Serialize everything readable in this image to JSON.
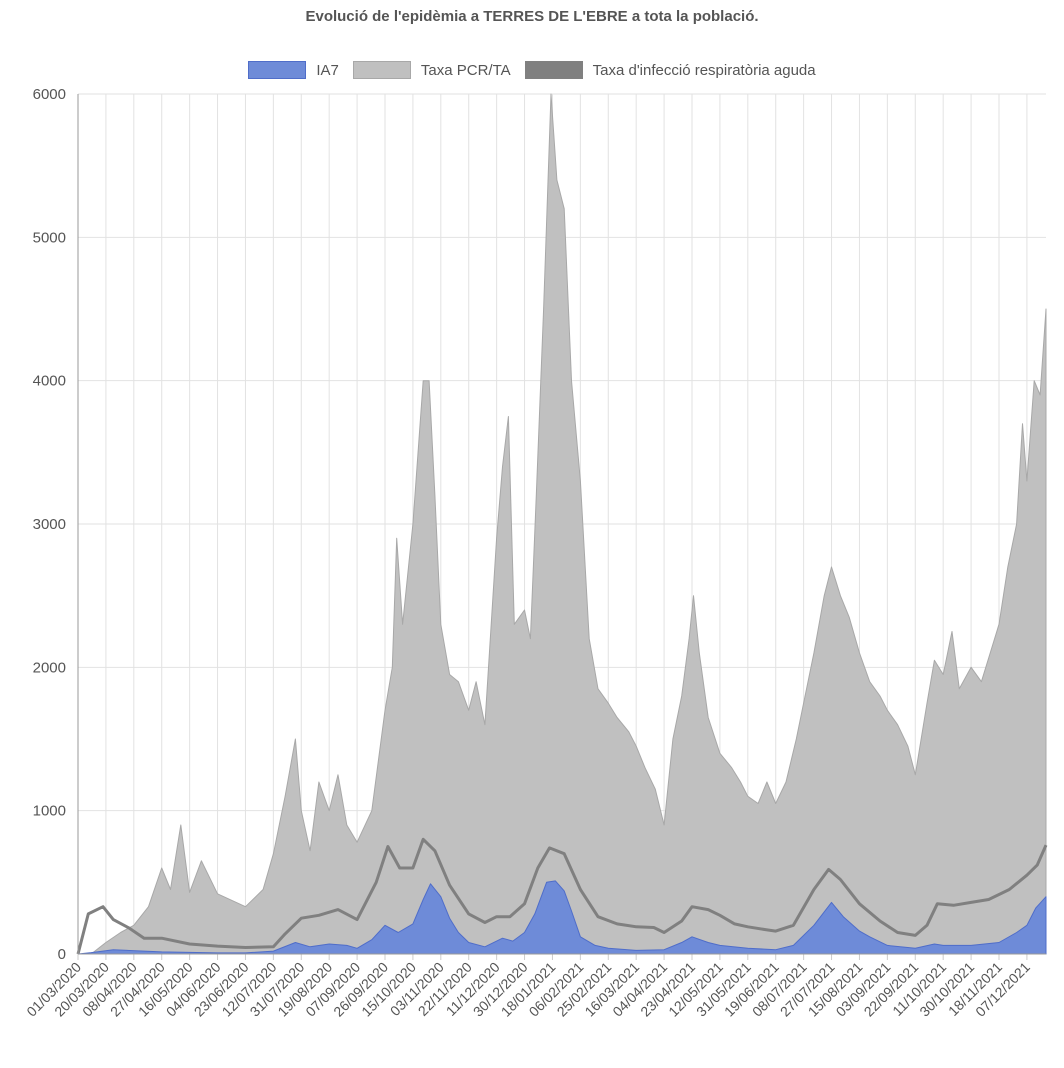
{
  "chart_data": {
    "type": "area",
    "title": "Evolució de l'epidèmia a TERRES DE L'EBRE a tota la població.",
    "xlabel": "",
    "ylabel": "",
    "ylim": [
      0,
      6000
    ],
    "yticks": [
      0,
      1000,
      2000,
      3000,
      4000,
      5000,
      6000
    ],
    "grid": true,
    "legend_position": "top-center",
    "x_start": "01/03/2020",
    "x_end": "20/12/2021",
    "x_tick_labels": [
      "01/03/2020",
      "20/03/2020",
      "08/04/2020",
      "27/04/2020",
      "16/05/2020",
      "04/06/2020",
      "23/06/2020",
      "12/07/2020",
      "31/07/2020",
      "19/08/2020",
      "07/09/2020",
      "26/09/2020",
      "15/10/2020",
      "03/11/2020",
      "22/11/2020",
      "11/12/2020",
      "30/12/2020",
      "18/01/2021",
      "06/02/2021",
      "25/02/2021",
      "16/03/2021",
      "04/04/2021",
      "23/04/2021",
      "12/05/2021",
      "31/05/2021",
      "19/06/2021",
      "08/07/2021",
      "27/07/2021",
      "15/08/2021",
      "03/09/2021",
      "22/09/2021",
      "11/10/2021",
      "30/10/2021",
      "18/11/2021",
      "07/12/2021"
    ],
    "series": [
      {
        "name": "Taxa PCR/TA",
        "color": "#c0c0c0",
        "border": "#a8a8a8",
        "points": [
          [
            "01/03/2020",
            0
          ],
          [
            "10/03/2020",
            0
          ],
          [
            "20/03/2020",
            80
          ],
          [
            "30/03/2020",
            150
          ],
          [
            "08/04/2020",
            200
          ],
          [
            "18/04/2020",
            330
          ],
          [
            "27/04/2020",
            600
          ],
          [
            "03/05/2020",
            450
          ],
          [
            "10/05/2020",
            900
          ],
          [
            "16/05/2020",
            430
          ],
          [
            "24/05/2020",
            650
          ],
          [
            "04/06/2020",
            420
          ],
          [
            "23/06/2020",
            330
          ],
          [
            "05/07/2020",
            450
          ],
          [
            "12/07/2020",
            700
          ],
          [
            "20/07/2020",
            1100
          ],
          [
            "27/07/2020",
            1500
          ],
          [
            "31/07/2020",
            1000
          ],
          [
            "06/08/2020",
            720
          ],
          [
            "12/08/2020",
            1200
          ],
          [
            "19/08/2020",
            1000
          ],
          [
            "25/08/2020",
            1250
          ],
          [
            "31/08/2020",
            900
          ],
          [
            "07/09/2020",
            780
          ],
          [
            "17/09/2020",
            1000
          ],
          [
            "26/09/2020",
            1700
          ],
          [
            "01/10/2020",
            2000
          ],
          [
            "04/10/2020",
            2900
          ],
          [
            "08/10/2020",
            2300
          ],
          [
            "15/10/2020",
            3000
          ],
          [
            "22/10/2020",
            4000
          ],
          [
            "26/10/2020",
            4000
          ],
          [
            "30/10/2020",
            3200
          ],
          [
            "03/11/2020",
            2300
          ],
          [
            "09/11/2020",
            1950
          ],
          [
            "15/11/2020",
            1900
          ],
          [
            "22/11/2020",
            1700
          ],
          [
            "27/11/2020",
            1900
          ],
          [
            "03/12/2020",
            1600
          ],
          [
            "11/12/2020",
            2900
          ],
          [
            "15/12/2020",
            3400
          ],
          [
            "19/12/2020",
            3750
          ],
          [
            "23/12/2020",
            2300
          ],
          [
            "30/12/2020",
            2400
          ],
          [
            "03/01/2021",
            2200
          ],
          [
            "07/01/2021",
            3200
          ],
          [
            "12/01/2021",
            4500
          ],
          [
            "17/01/2021",
            6000
          ],
          [
            "21/01/2021",
            5400
          ],
          [
            "26/01/2021",
            5200
          ],
          [
            "31/01/2021",
            4000
          ],
          [
            "06/02/2021",
            3300
          ],
          [
            "12/02/2021",
            2200
          ],
          [
            "18/02/2021",
            1850
          ],
          [
            "25/02/2021",
            1750
          ],
          [
            "03/03/2021",
            1650
          ],
          [
            "11/03/2021",
            1550
          ],
          [
            "16/03/2021",
            1450
          ],
          [
            "22/03/2021",
            1300
          ],
          [
            "29/03/2021",
            1150
          ],
          [
            "04/04/2021",
            900
          ],
          [
            "10/04/2021",
            1500
          ],
          [
            "16/04/2021",
            1800
          ],
          [
            "21/04/2021",
            2200
          ],
          [
            "24/04/2021",
            2500
          ],
          [
            "28/04/2021",
            2100
          ],
          [
            "04/05/2021",
            1650
          ],
          [
            "12/05/2021",
            1400
          ],
          [
            "20/05/2021",
            1300
          ],
          [
            "26/05/2021",
            1200
          ],
          [
            "31/05/2021",
            1100
          ],
          [
            "07/06/2021",
            1050
          ],
          [
            "13/06/2021",
            1200
          ],
          [
            "19/06/2021",
            1050
          ],
          [
            "26/06/2021",
            1200
          ],
          [
            "03/07/2021",
            1500
          ],
          [
            "08/07/2021",
            1750
          ],
          [
            "15/07/2021",
            2100
          ],
          [
            "22/07/2021",
            2500
          ],
          [
            "27/07/2021",
            2700
          ],
          [
            "02/08/2021",
            2500
          ],
          [
            "08/08/2021",
            2350
          ],
          [
            "15/08/2021",
            2100
          ],
          [
            "22/08/2021",
            1900
          ],
          [
            "29/08/2021",
            1800
          ],
          [
            "03/09/2021",
            1700
          ],
          [
            "10/09/2021",
            1600
          ],
          [
            "17/09/2021",
            1450
          ],
          [
            "22/09/2021",
            1250
          ],
          [
            "30/09/2021",
            1750
          ],
          [
            "05/10/2021",
            2050
          ],
          [
            "11/10/2021",
            1950
          ],
          [
            "17/10/2021",
            2250
          ],
          [
            "22/10/2021",
            1850
          ],
          [
            "30/10/2021",
            2000
          ],
          [
            "06/11/2021",
            1900
          ],
          [
            "12/11/2021",
            2100
          ],
          [
            "18/11/2021",
            2300
          ],
          [
            "24/11/2021",
            2700
          ],
          [
            "30/11/2021",
            3000
          ],
          [
            "04/12/2021",
            3700
          ],
          [
            "07/12/2021",
            3300
          ],
          [
            "12/12/2021",
            4000
          ],
          [
            "16/12/2021",
            3900
          ],
          [
            "20/12/2021",
            4500
          ]
        ]
      },
      {
        "name": "Taxa d'infecció respiratòria aguda",
        "color": "#808080",
        "border": "#808080",
        "line_only": true,
        "points": [
          [
            "01/03/2020",
            0
          ],
          [
            "08/03/2020",
            280
          ],
          [
            "18/03/2020",
            330
          ],
          [
            "25/03/2020",
            240
          ],
          [
            "05/04/2020",
            180
          ],
          [
            "15/04/2020",
            110
          ],
          [
            "27/04/2020",
            110
          ],
          [
            "16/05/2020",
            70
          ],
          [
            "04/06/2020",
            55
          ],
          [
            "23/06/2020",
            45
          ],
          [
            "12/07/2020",
            50
          ],
          [
            "20/07/2020",
            140
          ],
          [
            "31/07/2020",
            250
          ],
          [
            "12/08/2020",
            270
          ],
          [
            "25/08/2020",
            310
          ],
          [
            "07/09/2020",
            240
          ],
          [
            "20/09/2020",
            500
          ],
          [
            "28/09/2020",
            750
          ],
          [
            "06/10/2020",
            600
          ],
          [
            "15/10/2020",
            600
          ],
          [
            "22/10/2020",
            800
          ],
          [
            "30/10/2020",
            720
          ],
          [
            "09/11/2020",
            480
          ],
          [
            "22/11/2020",
            280
          ],
          [
            "03/12/2020",
            220
          ],
          [
            "11/12/2020",
            260
          ],
          [
            "20/12/2020",
            260
          ],
          [
            "30/12/2020",
            350
          ],
          [
            "08/01/2021",
            600
          ],
          [
            "16/01/2021",
            740
          ],
          [
            "26/01/2021",
            700
          ],
          [
            "06/02/2021",
            450
          ],
          [
            "18/02/2021",
            260
          ],
          [
            "03/03/2021",
            210
          ],
          [
            "16/03/2021",
            190
          ],
          [
            "28/03/2021",
            185
          ],
          [
            "04/04/2021",
            150
          ],
          [
            "16/04/2021",
            230
          ],
          [
            "23/04/2021",
            330
          ],
          [
            "04/05/2021",
            310
          ],
          [
            "12/05/2021",
            270
          ],
          [
            "22/05/2021",
            210
          ],
          [
            "31/05/2021",
            190
          ],
          [
            "12/06/2021",
            170
          ],
          [
            "19/06/2021",
            160
          ],
          [
            "01/07/2021",
            200
          ],
          [
            "15/07/2021",
            450
          ],
          [
            "25/07/2021",
            590
          ],
          [
            "02/08/2021",
            520
          ],
          [
            "15/08/2021",
            350
          ],
          [
            "29/08/2021",
            230
          ],
          [
            "10/09/2021",
            150
          ],
          [
            "22/09/2021",
            130
          ],
          [
            "30/09/2021",
            200
          ],
          [
            "07/10/2021",
            350
          ],
          [
            "18/10/2021",
            340
          ],
          [
            "30/10/2021",
            360
          ],
          [
            "11/11/2021",
            380
          ],
          [
            "25/11/2021",
            450
          ],
          [
            "07/12/2021",
            550
          ],
          [
            "14/12/2021",
            620
          ],
          [
            "20/12/2021",
            760
          ]
        ]
      },
      {
        "name": "IA7",
        "color": "#6e8bd8",
        "border": "#4f6dc9",
        "points": [
          [
            "01/03/2020",
            0
          ],
          [
            "10/03/2020",
            10
          ],
          [
            "25/03/2020",
            30
          ],
          [
            "15/04/2020",
            20
          ],
          [
            "27/04/2020",
            15
          ],
          [
            "04/06/2020",
            8
          ],
          [
            "23/06/2020",
            8
          ],
          [
            "12/07/2020",
            20
          ],
          [
            "27/07/2020",
            80
          ],
          [
            "06/08/2020",
            50
          ],
          [
            "19/08/2020",
            70
          ],
          [
            "31/08/2020",
            60
          ],
          [
            "07/09/2020",
            40
          ],
          [
            "17/09/2020",
            100
          ],
          [
            "26/09/2020",
            200
          ],
          [
            "05/10/2020",
            150
          ],
          [
            "15/10/2020",
            210
          ],
          [
            "22/10/2020",
            380
          ],
          [
            "27/10/2020",
            490
          ],
          [
            "03/11/2020",
            400
          ],
          [
            "09/11/2020",
            250
          ],
          [
            "15/11/2020",
            150
          ],
          [
            "22/11/2020",
            80
          ],
          [
            "03/12/2020",
            50
          ],
          [
            "15/12/2020",
            110
          ],
          [
            "22/12/2020",
            90
          ],
          [
            "30/12/2020",
            150
          ],
          [
            "06/01/2021",
            280
          ],
          [
            "14/01/2021",
            500
          ],
          [
            "20/01/2021",
            510
          ],
          [
            "26/01/2021",
            440
          ],
          [
            "31/01/2021",
            300
          ],
          [
            "06/02/2021",
            120
          ],
          [
            "16/02/2021",
            60
          ],
          [
            "25/02/2021",
            40
          ],
          [
            "16/03/2021",
            25
          ],
          [
            "04/04/2021",
            30
          ],
          [
            "16/04/2021",
            80
          ],
          [
            "23/04/2021",
            120
          ],
          [
            "04/05/2021",
            80
          ],
          [
            "12/05/2021",
            60
          ],
          [
            "31/05/2021",
            40
          ],
          [
            "19/06/2021",
            30
          ],
          [
            "01/07/2021",
            60
          ],
          [
            "15/07/2021",
            200
          ],
          [
            "27/07/2021",
            360
          ],
          [
            "04/08/2021",
            260
          ],
          [
            "15/08/2021",
            160
          ],
          [
            "22/08/2021",
            120
          ],
          [
            "03/09/2021",
            60
          ],
          [
            "22/09/2021",
            40
          ],
          [
            "05/10/2021",
            70
          ],
          [
            "11/10/2021",
            60
          ],
          [
            "30/10/2021",
            60
          ],
          [
            "18/11/2021",
            80
          ],
          [
            "30/11/2021",
            150
          ],
          [
            "07/12/2021",
            200
          ],
          [
            "13/12/2021",
            320
          ],
          [
            "20/12/2021",
            400
          ]
        ]
      }
    ]
  }
}
